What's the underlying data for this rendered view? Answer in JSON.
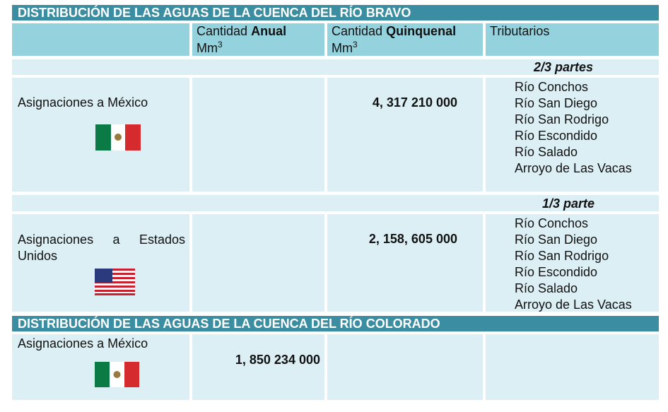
{
  "sections": [
    {
      "title": "DISTRIBUCIÓN DE LAS AGUAS DE LA CUENCA DEL RÍO BRAVO",
      "header": {
        "annual": {
          "prefix": "Cantidad",
          "emphasis": "Anual",
          "unit": "Mm",
          "exponent": "3"
        },
        "quinquennial": {
          "prefix": "Cantidad",
          "emphasis": "Quinquenal",
          "unit": "Mm",
          "exponent": "3"
        },
        "tributaries": "Tributarios"
      },
      "groups": [
        {
          "share": "2/3 partes",
          "label": "Asignaciones a México",
          "quinquennial": "4, 317 210 000",
          "tributaries": [
            "Río Conchos",
            "Río San Diego",
            "Río San Rodrigo",
            "Río Escondido",
            "Río Salado",
            "Arroyo de Las Vacas"
          ]
        },
        {
          "share": "1/3 parte",
          "label": "Asignaciones a Estados Unidos",
          "quinquennial": "2, 158, 605 000",
          "tributaries": [
            "Río Conchos",
            "Río San Diego",
            "Río San Rodrigo",
            "Río Escondido",
            "Río Salado",
            "Arroyo de Las Vacas"
          ]
        }
      ]
    },
    {
      "title": "DISTRIBUCIÓN DE LAS AGUAS DE LA CUENCA DEL RÍO COLORADO",
      "groups": [
        {
          "label": "Asignaciones a México",
          "annual": "1, 850 234 000"
        }
      ]
    }
  ]
}
